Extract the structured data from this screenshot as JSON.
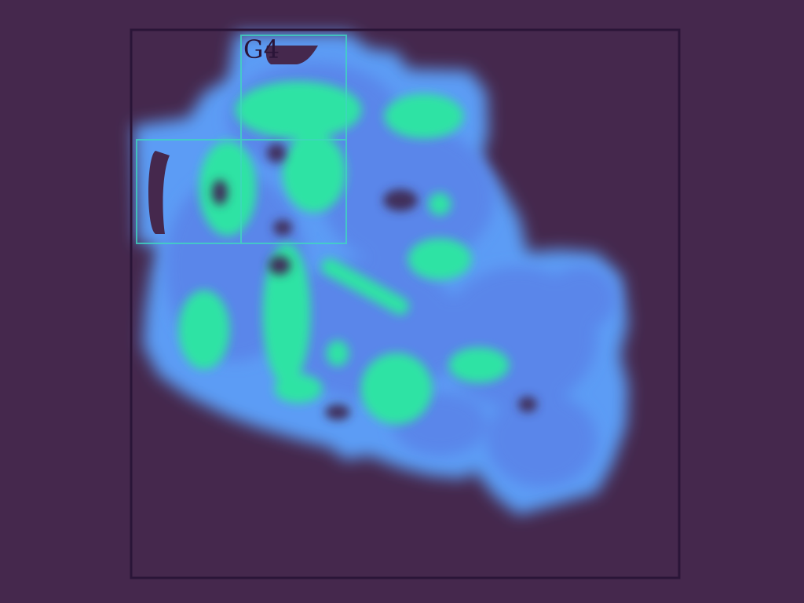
{
  "map": {
    "grid_label": "G4",
    "colors": {
      "background": "#45284d",
      "frame": "#2a1538",
      "blob_outer": "#5b9cf5",
      "blob_mid": "#5a86ea",
      "hot": "#2ee3a4",
      "hot_bright": "#34f09c",
      "hole": "#3f2d5a",
      "grid_line": "#3fd7bf"
    }
  }
}
